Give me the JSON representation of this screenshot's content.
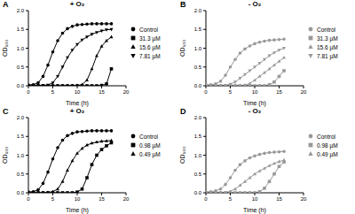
{
  "chart_data": [
    {
      "type": "line",
      "title": "+ O₂",
      "annotations": [
        "A"
      ],
      "x_label": "Time (h)",
      "y_label": "OD₆₀₀",
      "x": [
        0,
        1,
        2,
        3,
        4,
        5,
        6,
        7,
        8,
        9,
        10,
        11,
        12,
        13,
        14,
        15,
        16,
        17
      ],
      "xlim": [
        0,
        20
      ],
      "xticks": [
        0,
        5,
        10,
        15,
        20
      ],
      "ylim": [
        0,
        2
      ],
      "yticks": [
        {
          "value": 0,
          "label": "0.0"
        },
        0.5,
        {
          "value": 1,
          "label": "1.0"
        },
        1.5,
        {
          "value": 2,
          "label": "2.0"
        }
      ],
      "grid": false,
      "series": [
        {
          "name": "Control",
          "color": "#000000",
          "marker": "circle",
          "values": [
            0.02,
            0.03,
            0.08,
            0.25,
            0.55,
            0.9,
            1.2,
            1.4,
            1.52,
            1.58,
            1.62,
            1.63,
            1.64,
            1.65,
            1.65,
            1.65,
            1.65,
            1.65
          ]
        },
        {
          "name": "31.3 µM",
          "color": "#000000",
          "marker": "square",
          "values": [
            0,
            0,
            0,
            0,
            0,
            0,
            0,
            0,
            0,
            0,
            0,
            0,
            0,
            0,
            0,
            0.01,
            0.05,
            0.45
          ]
        },
        {
          "name": "15.6 µM",
          "color": "#000000",
          "marker": "triangle",
          "values": [
            0,
            0,
            0,
            0,
            0,
            0,
            0,
            0,
            0,
            0,
            0.01,
            0.03,
            0.15,
            0.45,
            0.8,
            1.05,
            1.2,
            1.3
          ]
        },
        {
          "name": "7.81 µM",
          "color": "#000000",
          "marker": "triangle-down",
          "values": [
            0,
            0,
            0,
            0.01,
            0.02,
            0.08,
            0.25,
            0.5,
            0.75,
            0.95,
            1.1,
            1.22,
            1.3,
            1.37,
            1.42,
            1.46,
            1.49,
            1.5
          ]
        }
      ]
    },
    {
      "type": "line",
      "title": "- O₂",
      "annotations": [
        "B"
      ],
      "x_label": "Time (h)",
      "y_label": "OD₆₀₀",
      "x": [
        0,
        1,
        2,
        3,
        4,
        5,
        6,
        7,
        8,
        9,
        10,
        11,
        12,
        13,
        14,
        15,
        16
      ],
      "xlim": [
        0,
        20
      ],
      "xticks": [
        0,
        5,
        10,
        15,
        20
      ],
      "ylim": [
        0,
        2
      ],
      "yticks": [
        {
          "value": 0,
          "label": "0.0"
        },
        0.5,
        {
          "value": 1,
          "label": "1.0"
        },
        1.5,
        {
          "value": 2,
          "label": "2.0"
        }
      ],
      "grid": false,
      "series": [
        {
          "name": "Control",
          "color": "#999999",
          "marker": "circle",
          "values": [
            0.02,
            0.03,
            0.05,
            0.12,
            0.28,
            0.5,
            0.7,
            0.87,
            0.98,
            1.06,
            1.12,
            1.16,
            1.19,
            1.21,
            1.22,
            1.23,
            1.24
          ]
        },
        {
          "name": "31.3 µM",
          "color": "#999999",
          "marker": "square",
          "values": [
            0,
            0,
            0,
            0,
            0,
            0,
            0,
            0,
            0,
            0,
            0,
            0,
            0,
            0.03,
            0.1,
            0.25,
            0.4
          ]
        },
        {
          "name": "15.6 µM",
          "color": "#999999",
          "marker": "triangle",
          "values": [
            0,
            0,
            0,
            0,
            0,
            0,
            0,
            0,
            0.02,
            0.06,
            0.15,
            0.25,
            0.35,
            0.45,
            0.55,
            0.65,
            0.75
          ]
        },
        {
          "name": "7.81 µM",
          "color": "#999999",
          "marker": "triangle-down",
          "values": [
            0,
            0,
            0,
            0,
            0.01,
            0.04,
            0.1,
            0.2,
            0.3,
            0.4,
            0.5,
            0.6,
            0.7,
            0.8,
            0.88,
            0.95,
            1.0
          ]
        }
      ]
    },
    {
      "type": "line",
      "title": "+ O₂",
      "annotations": [
        "C"
      ],
      "x_label": "Time (h)",
      "y_label": "OD₆₀₀",
      "x": [
        0,
        1,
        2,
        3,
        4,
        5,
        6,
        7,
        8,
        9,
        10,
        11,
        12,
        13,
        14,
        15,
        16,
        17
      ],
      "xlim": [
        0,
        20
      ],
      "xticks": [
        0,
        5,
        10,
        15,
        20
      ],
      "ylim": [
        0,
        2
      ],
      "yticks": [
        {
          "value": 0,
          "label": "0.0"
        },
        0.5,
        {
          "value": 1,
          "label": "1.0"
        },
        1.5,
        {
          "value": 2,
          "label": "2.0"
        }
      ],
      "grid": false,
      "series": [
        {
          "name": "Control",
          "color": "#000000",
          "marker": "circle",
          "values": [
            0.02,
            0.03,
            0.08,
            0.25,
            0.55,
            0.9,
            1.2,
            1.4,
            1.52,
            1.58,
            1.62,
            1.63,
            1.64,
            1.65,
            1.65,
            1.65,
            1.65,
            1.65
          ]
        },
        {
          "name": "0.98 µM",
          "color": "#000000",
          "marker": "square",
          "values": [
            0,
            0,
            0,
            0,
            0,
            0,
            0,
            0,
            0,
            0,
            0.02,
            0.1,
            0.4,
            0.75,
            1.0,
            1.15,
            1.25,
            1.33
          ]
        },
        {
          "name": "0.49 µM",
          "color": "#000000",
          "marker": "triangle",
          "values": [
            0,
            0,
            0,
            0,
            0.01,
            0.03,
            0.1,
            0.3,
            0.6,
            0.85,
            1.05,
            1.18,
            1.27,
            1.32,
            1.35,
            1.37,
            1.38,
            1.39
          ]
        }
      ]
    },
    {
      "type": "line",
      "title": "- O₂",
      "annotations": [
        "D"
      ],
      "x_label": "Time (h)",
      "y_label": "OD₆₀₀",
      "x": [
        0,
        1,
        2,
        3,
        4,
        5,
        6,
        7,
        8,
        9,
        10,
        11,
        12,
        13,
        14,
        15,
        16
      ],
      "xlim": [
        0,
        20
      ],
      "xticks": [
        0,
        5,
        10,
        15,
        20
      ],
      "ylim": [
        0,
        2
      ],
      "yticks": [
        {
          "value": 0,
          "label": "0.0"
        },
        0.5,
        {
          "value": 1,
          "label": "1.0"
        },
        1.5,
        {
          "value": 2,
          "label": "2.0"
        }
      ],
      "grid": false,
      "series": [
        {
          "name": "Control",
          "color": "#999999",
          "marker": "circle",
          "values": [
            0.02,
            0.03,
            0.05,
            0.1,
            0.22,
            0.4,
            0.6,
            0.75,
            0.85,
            0.93,
            0.98,
            1.02,
            1.05,
            1.07,
            1.08,
            1.09,
            1.1
          ]
        },
        {
          "name": "0.98 µM",
          "color": "#999999",
          "marker": "square",
          "values": [
            0,
            0,
            0,
            0,
            0,
            0,
            0,
            0,
            0,
            0,
            0,
            0.03,
            0.12,
            0.3,
            0.5,
            0.7,
            0.82
          ]
        },
        {
          "name": "0.49 µM",
          "color": "#999999",
          "marker": "triangle",
          "values": [
            0,
            0,
            0,
            0,
            0.01,
            0.04,
            0.1,
            0.2,
            0.3,
            0.4,
            0.5,
            0.58,
            0.65,
            0.72,
            0.78,
            0.83,
            0.87
          ]
        }
      ]
    }
  ]
}
